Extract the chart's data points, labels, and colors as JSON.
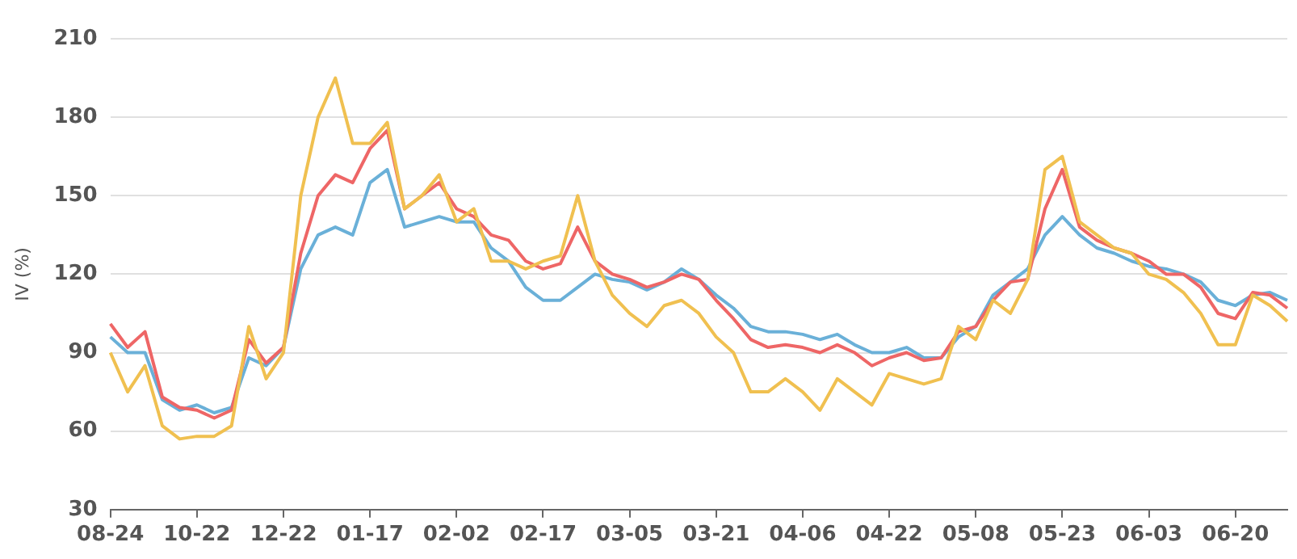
{
  "chart_data": {
    "type": "line",
    "ylabel": "IV (%)",
    "categories": [
      "08-24",
      null,
      null,
      null,
      null,
      "10-22",
      null,
      null,
      null,
      null,
      "12-22",
      null,
      null,
      null,
      null,
      "01-17",
      null,
      null,
      null,
      null,
      "02-02",
      null,
      null,
      null,
      null,
      "02-17",
      null,
      null,
      null,
      null,
      "03-05",
      null,
      null,
      null,
      null,
      "03-21",
      null,
      null,
      null,
      null,
      "04-06",
      null,
      null,
      null,
      null,
      "04-22",
      null,
      null,
      null,
      null,
      "05-08",
      null,
      null,
      null,
      null,
      "05-23",
      null,
      null,
      null,
      null,
      "06-03",
      null,
      null,
      null,
      null,
      "06-20",
      null,
      null,
      null
    ],
    "series": [
      {
        "color": "#f0c050",
        "values": [
          90,
          75,
          85,
          62,
          57,
          58,
          58,
          62,
          100,
          80,
          90,
          150,
          180,
          195,
          170,
          170,
          178,
          145,
          150,
          158,
          140,
          145,
          125,
          125,
          122,
          125,
          127,
          150,
          125,
          112,
          105,
          100,
          108,
          110,
          105,
          96,
          90,
          75,
          75,
          80,
          75,
          68,
          80,
          75,
          70,
          82,
          80,
          78,
          80,
          100,
          95,
          110,
          105,
          118,
          160,
          165,
          140,
          135,
          130,
          128,
          120,
          118,
          113,
          105,
          93,
          93,
          112,
          108,
          102
        ]
      },
      {
        "color": "#ee6666",
        "values": [
          101,
          92,
          98,
          73,
          69,
          68,
          65,
          68,
          95,
          86,
          92,
          128,
          150,
          158,
          155,
          168,
          175,
          145,
          150,
          155,
          145,
          142,
          135,
          133,
          125,
          122,
          124,
          138,
          125,
          120,
          118,
          115,
          117,
          120,
          118,
          110,
          103,
          95,
          92,
          93,
          92,
          90,
          93,
          90,
          85,
          88,
          90,
          87,
          88,
          98,
          100,
          110,
          117,
          118,
          145,
          160,
          138,
          133,
          130,
          128,
          125,
          120,
          120,
          115,
          105,
          103,
          113,
          112,
          107
        ]
      },
      {
        "color": "#6ab0d8",
        "values": [
          96,
          90,
          90,
          72,
          68,
          70,
          67,
          69,
          88,
          85,
          92,
          122,
          135,
          138,
          135,
          155,
          160,
          138,
          140,
          142,
          140,
          140,
          130,
          125,
          115,
          110,
          110,
          115,
          120,
          118,
          117,
          114,
          117,
          122,
          118,
          112,
          107,
          100,
          98,
          98,
          97,
          95,
          97,
          93,
          90,
          90,
          92,
          88,
          88,
          96,
          100,
          112,
          117,
          122,
          135,
          142,
          135,
          130,
          128,
          125,
          123,
          122,
          120,
          117,
          110,
          108,
          112,
          113,
          110
        ]
      }
    ],
    "ylim": [
      30,
      210
    ],
    "yticks": [
      30,
      60,
      90,
      120,
      150,
      180,
      210
    ],
    "grid": "y",
    "legend": false,
    "marker": "none",
    "line_style": "solid"
  }
}
